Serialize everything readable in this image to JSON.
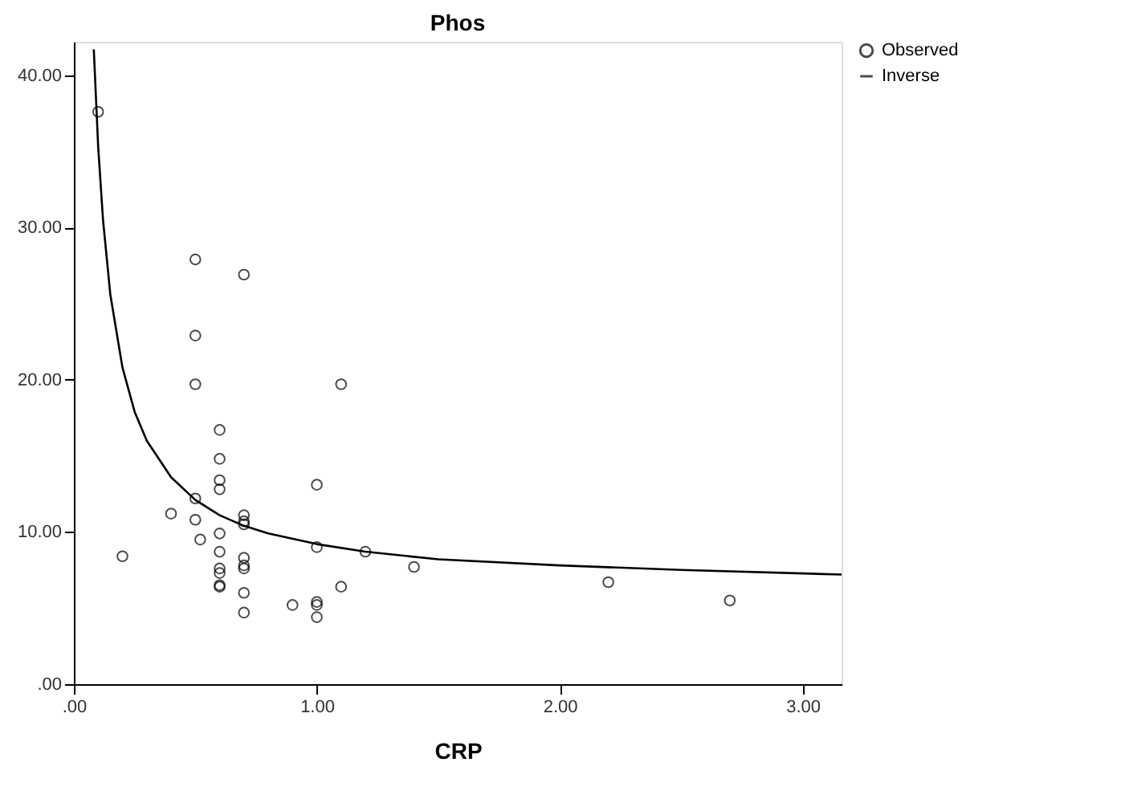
{
  "chart_data": {
    "type": "scatter",
    "title": "Phos",
    "xlabel": "CRP",
    "xlim": [
      0,
      3.16
    ],
    "ylim": [
      0,
      42.2
    ],
    "xticks": [
      {
        "value": 0,
        "label": ".00"
      },
      {
        "value": 1,
        "label": "1.00"
      },
      {
        "value": 2,
        "label": "2.00"
      },
      {
        "value": 3,
        "label": "3.00"
      }
    ],
    "yticks": [
      {
        "value": 0,
        "label": ".00"
      },
      {
        "value": 10,
        "label": "10.00"
      },
      {
        "value": 20,
        "label": "20.00"
      },
      {
        "value": 30,
        "label": "30.00"
      },
      {
        "value": 40,
        "label": "40.00"
      }
    ],
    "grid": false,
    "legend": "top right",
    "series": [
      {
        "name": "Observed",
        "marker": "circle",
        "color": "#000000",
        "x": [
          0.1,
          0.5,
          0.7,
          0.5,
          0.5,
          1.1,
          0.6,
          0.6,
          0.6,
          0.6,
          1.0,
          0.5,
          0.4,
          0.5,
          0.7,
          0.7,
          0.7,
          0.6,
          0.52,
          0.2,
          0.6,
          1.0,
          1.2,
          0.7,
          0.7,
          0.7,
          0.6,
          0.6,
          0.6,
          0.6,
          1.4,
          1.1,
          0.7,
          0.7,
          0.9,
          1.0,
          1.0,
          1.0,
          2.2,
          2.7
        ],
        "values": [
          37.6,
          27.9,
          26.9,
          22.9,
          19.7,
          19.7,
          16.7,
          14.8,
          13.4,
          12.8,
          13.1,
          12.2,
          11.2,
          10.8,
          11.1,
          10.7,
          10.5,
          9.9,
          9.5,
          8.4,
          8.7,
          9.0,
          8.7,
          8.3,
          7.8,
          7.6,
          7.6,
          7.3,
          6.5,
          6.4,
          7.7,
          6.4,
          6.0,
          4.7,
          5.2,
          5.4,
          5.2,
          4.4,
          6.7,
          5.5
        ]
      },
      {
        "name": "Inverse",
        "type": "line",
        "line_style": "solid",
        "color": "#000000",
        "x": [
          0.082,
          0.1,
          0.12,
          0.15,
          0.2,
          0.25,
          0.3,
          0.4,
          0.5,
          0.6,
          0.7,
          0.8,
          1.0,
          1.2,
          1.5,
          2.0,
          2.5,
          3.16
        ],
        "values": [
          41.7,
          35.3,
          30.5,
          25.6,
          20.8,
          17.9,
          16.0,
          13.6,
          12.1,
          11.1,
          10.4,
          9.9,
          9.2,
          8.7,
          8.2,
          7.8,
          7.5,
          7.2
        ]
      }
    ]
  }
}
